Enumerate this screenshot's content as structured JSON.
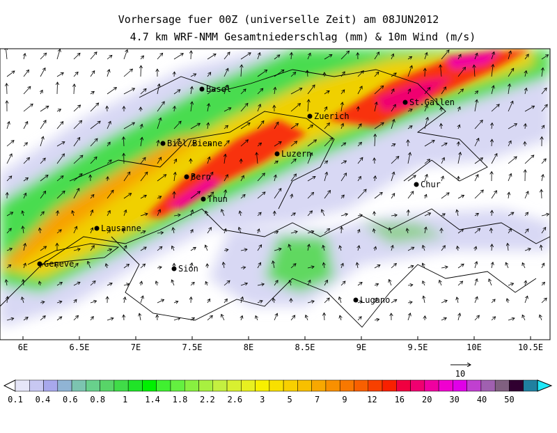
{
  "header": {
    "title_line1": "Vorhersage fuer 00Z (universelle Zeit) am 08JUN2012",
    "title_line2": "4.7 km WRF-NMM Gesamtniederschlag (mm) & 10m Wind (m/s)"
  },
  "cities": [
    "Basel",
    "Zuerich",
    "St.Gallen",
    "Biel/Bienne",
    "Luzern",
    "Bern",
    "Thun",
    "Chur",
    "Lausanne",
    "Geneve",
    "Sion",
    "Lugano"
  ],
  "longitude_labels": [
    "6E",
    "6.5E",
    "7E",
    "7.5E",
    "8E",
    "8.5E",
    "9E",
    "9.5E",
    "10E",
    "10.5E"
  ],
  "wind_reference": {
    "label": "10"
  },
  "colorbar": {
    "levels": [
      0.1,
      0.4,
      0.6,
      0.8,
      1,
      1.4,
      1.8,
      2.2,
      2.6,
      3,
      5,
      7,
      9,
      12,
      16,
      20,
      30,
      40,
      50
    ],
    "colors": [
      "#e6e6f8",
      "#c8c8f2",
      "#a8a8ec",
      "#90b4d4",
      "#7cc4b0",
      "#68d08c",
      "#58d468",
      "#40dc48",
      "#20e428",
      "#00f000",
      "#40f030",
      "#64f040",
      "#88f040",
      "#a8f040",
      "#c4f040",
      "#d8f030",
      "#e8f020",
      "#f8f000",
      "#f8e000",
      "#f8d000",
      "#f8c000",
      "#f8a800",
      "#f89000",
      "#f87800",
      "#f86000",
      "#f84000",
      "#f82000",
      "#f00040",
      "#f00070",
      "#f000a0",
      "#f000d0",
      "#e000e8",
      "#c040d0",
      "#a060b0",
      "#806080",
      "#300030",
      "#2080a0"
    ]
  }
}
